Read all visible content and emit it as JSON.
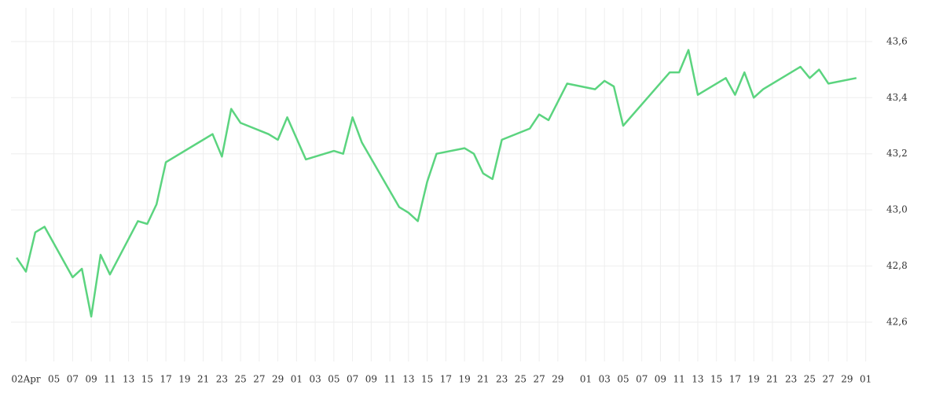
{
  "chart_data": {
    "type": "line",
    "x": [
      1,
      2,
      3,
      4,
      7,
      8,
      9,
      10,
      11,
      14,
      15,
      16,
      17,
      22,
      23,
      24,
      25,
      28,
      29,
      30,
      32,
      35,
      36,
      37,
      38,
      42,
      43,
      44,
      45,
      46,
      49,
      50,
      51,
      52,
      53,
      56,
      57,
      58,
      60,
      63,
      64,
      65,
      66,
      71,
      72,
      73,
      74,
      77,
      78,
      79,
      80,
      81,
      85,
      86,
      87,
      88,
      91
    ],
    "series": [
      {
        "color": "#5bd47f",
        "values": [
          42.83,
          42.78,
          42.92,
          42.94,
          42.76,
          42.79,
          42.62,
          42.84,
          42.77,
          42.96,
          42.95,
          43.02,
          43.17,
          43.27,
          43.19,
          43.36,
          43.31,
          43.27,
          43.25,
          43.33,
          43.18,
          43.21,
          43.2,
          43.33,
          43.24,
          43.01,
          42.99,
          42.96,
          43.1,
          43.2,
          43.22,
          43.2,
          43.13,
          43.11,
          43.25,
          43.29,
          43.34,
          43.32,
          43.45,
          43.43,
          43.46,
          43.44,
          43.3,
          43.49,
          43.49,
          43.57,
          43.41,
          43.47,
          43.41,
          43.49,
          43.4,
          43.43,
          43.51,
          43.47,
          43.5,
          43.45,
          43.47
        ]
      }
    ],
    "xlim": [
      0.4,
      92.7
    ],
    "xticks": [
      {
        "value": 2,
        "label": "02Apr"
      },
      {
        "value": 5,
        "label": "05"
      },
      {
        "value": 7,
        "label": "07"
      },
      {
        "value": 9,
        "label": "09"
      },
      {
        "value": 11,
        "label": "11"
      },
      {
        "value": 13,
        "label": "13"
      },
      {
        "value": 15,
        "label": "15"
      },
      {
        "value": 17,
        "label": "17"
      },
      {
        "value": 19,
        "label": "19"
      },
      {
        "value": 21,
        "label": "21"
      },
      {
        "value": 23,
        "label": "23"
      },
      {
        "value": 25,
        "label": "25"
      },
      {
        "value": 27,
        "label": "27"
      },
      {
        "value": 29,
        "label": "29"
      },
      {
        "value": 31,
        "label": "01"
      },
      {
        "value": 33,
        "label": "03"
      },
      {
        "value": 35,
        "label": "05"
      },
      {
        "value": 37,
        "label": "07"
      },
      {
        "value": 39,
        "label": "09"
      },
      {
        "value": 41,
        "label": "11"
      },
      {
        "value": 43,
        "label": "13"
      },
      {
        "value": 45,
        "label": "15"
      },
      {
        "value": 47,
        "label": "17"
      },
      {
        "value": 49,
        "label": "19"
      },
      {
        "value": 51,
        "label": "21"
      },
      {
        "value": 53,
        "label": "23"
      },
      {
        "value": 55,
        "label": "25"
      },
      {
        "value": 57,
        "label": "27"
      },
      {
        "value": 59,
        "label": "29"
      },
      {
        "value": 62,
        "label": "01"
      },
      {
        "value": 64,
        "label": "03"
      },
      {
        "value": 66,
        "label": "05"
      },
      {
        "value": 68,
        "label": "07"
      },
      {
        "value": 70,
        "label": "09"
      },
      {
        "value": 72,
        "label": "11"
      },
      {
        "value": 74,
        "label": "13"
      },
      {
        "value": 76,
        "label": "15"
      },
      {
        "value": 78,
        "label": "17"
      },
      {
        "value": 80,
        "label": "19"
      },
      {
        "value": 82,
        "label": "21"
      },
      {
        "value": 84,
        "label": "23"
      },
      {
        "value": 86,
        "label": "25"
      },
      {
        "value": 88,
        "label": "27"
      },
      {
        "value": 90,
        "label": "29"
      },
      {
        "value": 92,
        "label": "01"
      }
    ],
    "ylim": [
      42.46,
      43.72
    ],
    "yticks": [
      {
        "value": 42.6,
        "label": "42,6"
      },
      {
        "value": 42.8,
        "label": "42,8"
      },
      {
        "value": 43.0,
        "label": "43,0"
      },
      {
        "value": 43.2,
        "label": "43,2"
      },
      {
        "value": 43.4,
        "label": "43,4"
      },
      {
        "value": 43.6,
        "label": "43,6"
      }
    ],
    "grid": true
  }
}
